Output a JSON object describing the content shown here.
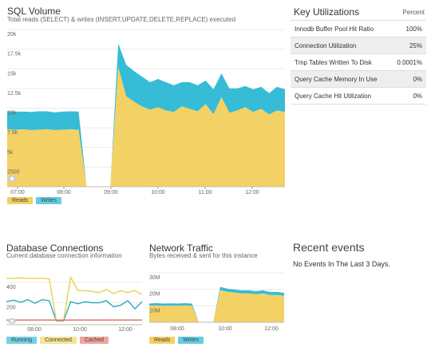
{
  "sql_volume": {
    "title": "SQL Volume",
    "subtitle": "Total reads (SELECT) & writes (INSERT,UPDATE,DELETE,REPLACE) executed",
    "y_ticks": [
      "20k",
      "17.5k",
      "15k",
      "12.5k",
      "10k",
      "7.5k",
      "5k",
      "2500"
    ],
    "x_ticks": [
      "07:00",
      "08:00",
      "09:00",
      "10:00",
      "11:00",
      "12:00"
    ],
    "legend": [
      "Reads",
      "Writes"
    ]
  },
  "db_connections": {
    "title": "Database Connections",
    "subtitle": "Current database connection information",
    "y_ticks": [
      "400",
      "200"
    ],
    "x_ticks": [
      "08:00",
      "10:00",
      "12:00"
    ],
    "legend": [
      "Running",
      "Connected",
      "Cached"
    ]
  },
  "network": {
    "title": "Network Traffic",
    "subtitle": "Bytes received & sent for this instance",
    "y_ticks": [
      "30M",
      "20M",
      "10M"
    ],
    "x_ticks": [
      "08:00",
      "10:00",
      "12:00"
    ],
    "legend": [
      "Reads",
      "Writes"
    ]
  },
  "key_utilizations": {
    "title": "Key Utilizations",
    "column": "Percent",
    "rows": [
      {
        "label": "Innodb Buffer Pool Hit Ratio",
        "value": "100%"
      },
      {
        "label": "Connection Utilization",
        "value": "25%"
      },
      {
        "label": "Tmp Tables Written To Disk",
        "value": "0.0001%"
      },
      {
        "label": "Query Cache Memory In Use",
        "value": "0%"
      },
      {
        "label": "Query Cache Hit Utilization",
        "value": "0%"
      }
    ]
  },
  "recent_events": {
    "title": "Recent events",
    "empty": "No Events In The Last 3 Days."
  },
  "colors": {
    "reads": "#f3d164",
    "writes": "#36bcd6",
    "running": "#2aa9c4",
    "connected": "#e8d24b",
    "cached": "#e26a5e"
  },
  "chart_data": [
    {
      "type": "area",
      "title": "SQL Volume",
      "subtitle": "Total reads (SELECT) & writes (INSERT,UPDATE,DELETE,REPLACE) executed",
      "x": [
        "06:45",
        "07:00",
        "07:15",
        "07:30",
        "07:45",
        "08:00",
        "08:15",
        "08:30",
        "08:45",
        "08:55",
        "09:00",
        "09:05",
        "09:10",
        "09:15",
        "09:20",
        "09:30",
        "09:40",
        "09:50",
        "10:00",
        "10:10",
        "10:20",
        "10:30",
        "10:40",
        "10:50",
        "11:00",
        "11:10",
        "11:20",
        "11:30",
        "11:40",
        "11:50",
        "12:00",
        "12:10",
        "12:20",
        "12:30",
        "12:40",
        "12:45"
      ],
      "series": [
        {
          "name": "Reads",
          "values": [
            7300,
            7250,
            7300,
            7200,
            7250,
            7300,
            7200,
            7250,
            7300,
            7250,
            0,
            0,
            0,
            0,
            15200,
            11500,
            10800,
            10200,
            9800,
            10100,
            9700,
            9500,
            10200,
            9900,
            9600,
            10500,
            9200,
            11400,
            9400,
            9700,
            10100,
            9500,
            9900,
            9200,
            9700,
            9500
          ]
        },
        {
          "name": "Writes",
          "values": [
            2300,
            2300,
            2250,
            2300,
            2350,
            2300,
            2250,
            2300,
            2300,
            2300,
            0,
            0,
            0,
            0,
            3000,
            4000,
            3900,
            3800,
            3500,
            3600,
            3600,
            3400,
            3100,
            3400,
            3300,
            3000,
            3200,
            3000,
            3100,
            2800,
            2700,
            2900,
            2800,
            2700,
            3000,
            2900
          ]
        }
      ],
      "ylim": [
        0,
        20000
      ],
      "legend": [
        "Reads",
        "Writes"
      ]
    },
    {
      "type": "line",
      "title": "Database Connections",
      "subtitle": "Current database connection information",
      "x_ticks": [
        "08:00",
        "10:00",
        "12:00"
      ],
      "series": [
        {
          "name": "Running",
          "values": [
            210,
            225,
            205,
            230,
            195,
            230,
            220,
            20,
            20,
            210,
            190,
            210,
            200,
            200,
            220,
            160,
            175,
            220,
            140,
            210
          ]
        },
        {
          "name": "Connected",
          "values": [
            440,
            440,
            445,
            440,
            440,
            440,
            435,
            25,
            25,
            450,
            320,
            320,
            310,
            300,
            330,
            290,
            320,
            300,
            320,
            280
          ]
        },
        {
          "name": "Cached",
          "values": [
            30,
            30,
            30,
            30,
            30,
            30,
            30,
            30,
            30,
            30,
            30,
            30,
            30,
            30,
            30,
            30,
            30,
            30,
            30,
            30
          ]
        }
      ],
      "ylim": [
        0,
        500
      ],
      "legend": [
        "Running",
        "Connected",
        "Cached"
      ]
    },
    {
      "type": "area",
      "title": "Network Traffic",
      "subtitle": "Bytes received & sent for this instance",
      "x_ticks": [
        "08:00",
        "10:00",
        "12:00"
      ],
      "series": [
        {
          "name": "Reads",
          "values": [
            10000,
            10200,
            10000,
            10100,
            10000,
            10200,
            10000,
            0,
            0,
            0,
            19500,
            18500,
            18000,
            17500,
            17500,
            17000,
            17500,
            16500,
            16500,
            16000
          ]
        },
        {
          "name": "Writes",
          "values": [
            1400,
            1400,
            1400,
            1400,
            1400,
            1400,
            1400,
            0,
            0,
            0,
            2000,
            1900,
            1900,
            1900,
            1900,
            1900,
            1900,
            1900,
            1900,
            1900
          ]
        }
      ],
      "ylim": [
        0,
        30000000
      ],
      "legend": [
        "Reads",
        "Writes"
      ]
    }
  ]
}
